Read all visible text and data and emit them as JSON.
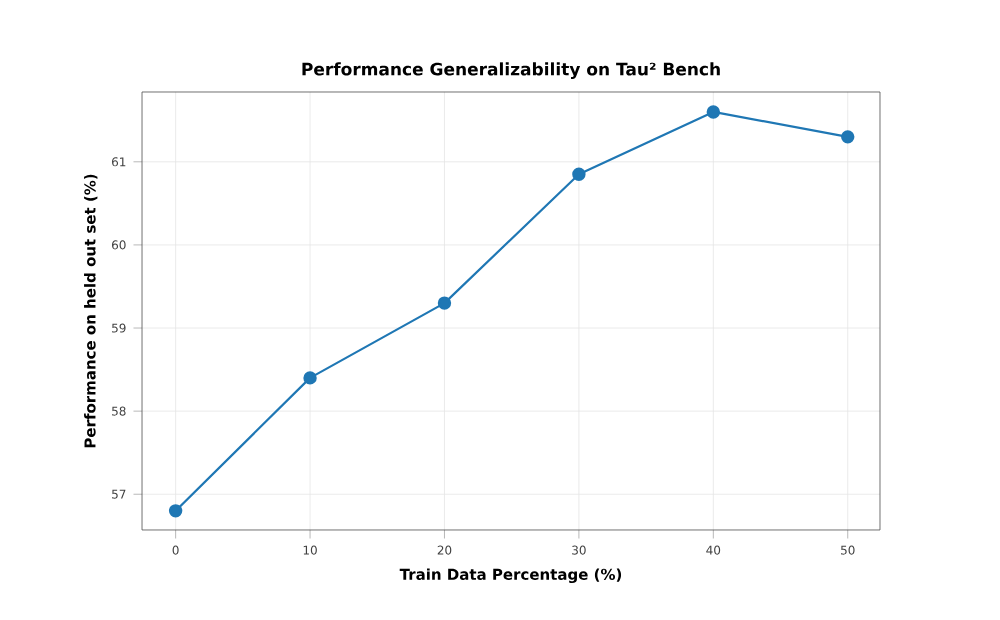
{
  "chart_data": {
    "type": "line",
    "title": "Performance Generalizability on Tau² Bench",
    "xlabel": "Train Data Percentage (%)",
    "ylabel": "Performance on held out set (%)",
    "x": [
      0,
      10,
      20,
      30,
      40,
      50
    ],
    "series": [
      {
        "color": "#1f77b4",
        "values": [
          56.8,
          58.4,
          59.3,
          60.85,
          61.6,
          61.3
        ]
      }
    ],
    "xlim": [
      -2.5,
      52.4
    ],
    "ylim": [
      56.57,
      61.84
    ],
    "xticks": [
      0,
      10,
      20,
      30,
      40,
      50
    ],
    "yticks": [
      57,
      58,
      59,
      60,
      61
    ],
    "grid": true,
    "marker": "circle",
    "line_style": "solid"
  }
}
